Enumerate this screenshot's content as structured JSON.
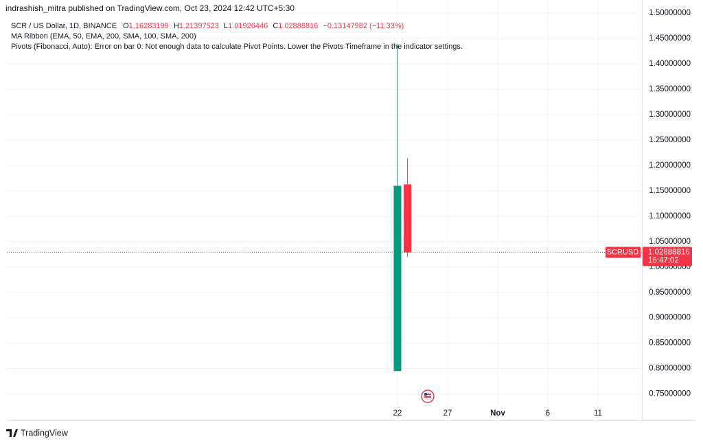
{
  "header": {
    "publisher": "indrashish_mitra published on TradingView.com, Oct 23, 2024 12:42 UTC+5:30"
  },
  "chart_data": {
    "type": "candlestick",
    "symbol_info": "SCR / US Dollar, 1D, BINANCE",
    "ohlc_labels": [
      "O",
      "H",
      "L",
      "C"
    ],
    "change_label": "−0.13147982 (−11.33%)",
    "indicators": [
      "MA Ribbon (EMA, 50, EMA, 200, SMA, 100, SMA, 200)",
      "Pivots (Fibonacci, Auto): Error on bar 0: Not enough data to calculate Pivot Points. Lower the Pivots Timeframe in the indicator settings."
    ],
    "categories": [
      "22",
      null,
      null,
      null,
      null,
      "27",
      null,
      null,
      null,
      null,
      "Nov",
      null,
      null,
      null,
      null,
      "6",
      null,
      null,
      null,
      null,
      "11"
    ],
    "open": [
      0.795,
      1.16283199,
      null,
      null,
      null,
      null,
      null,
      null,
      null,
      null,
      null,
      null,
      null,
      null,
      null,
      null,
      null,
      null,
      null,
      null,
      null
    ],
    "high": [
      1.44,
      1.21397523,
      null,
      null,
      null,
      null,
      null,
      null,
      null,
      null,
      null,
      null,
      null,
      null,
      null,
      null,
      null,
      null,
      null,
      null,
      null
    ],
    "low": [
      0.795,
      1.01926446,
      null,
      null,
      null,
      null,
      null,
      null,
      null,
      null,
      null,
      null,
      null,
      null,
      null,
      null,
      null,
      null,
      null,
      null,
      null
    ],
    "close": [
      1.16,
      1.02888816,
      null,
      null,
      null,
      null,
      null,
      null,
      null,
      null,
      null,
      null,
      null,
      null,
      null,
      null,
      null,
      null,
      null,
      null,
      null
    ],
    "up_color": "#089981",
    "down_color": "#f23645",
    "price_symbol": "SCRUSD",
    "countdown": "16:47:02",
    "ylim": [
      0.698,
      1.526
    ],
    "yticks": [
      {
        "value": 0.75,
        "label": "0.75000000"
      },
      {
        "value": 0.8,
        "label": "0.80000000"
      },
      {
        "value": 0.85,
        "label": "0.85000000"
      },
      {
        "value": 0.9,
        "label": "0.90000000"
      },
      {
        "value": 0.95,
        "label": "0.95000000"
      },
      {
        "value": 1.0,
        "label": "1.00000000"
      },
      {
        "value": 1.05,
        "label": "1.05000000"
      },
      {
        "value": 1.1,
        "label": "1.10000000"
      },
      {
        "value": 1.15,
        "label": "1.15000000"
      },
      {
        "value": 1.2,
        "label": "1.20000000"
      },
      {
        "value": 1.25,
        "label": "1.25000000"
      },
      {
        "value": 1.3,
        "label": "1.30000000"
      },
      {
        "value": 1.35,
        "label": "1.35000000"
      },
      {
        "value": 1.4,
        "label": "1.40000000"
      },
      {
        "value": 1.45,
        "label": "1.45000000"
      },
      {
        "value": 1.5,
        "label": "1.50000000"
      }
    ],
    "grid": true
  },
  "footer": {
    "brand": "TradingView"
  }
}
